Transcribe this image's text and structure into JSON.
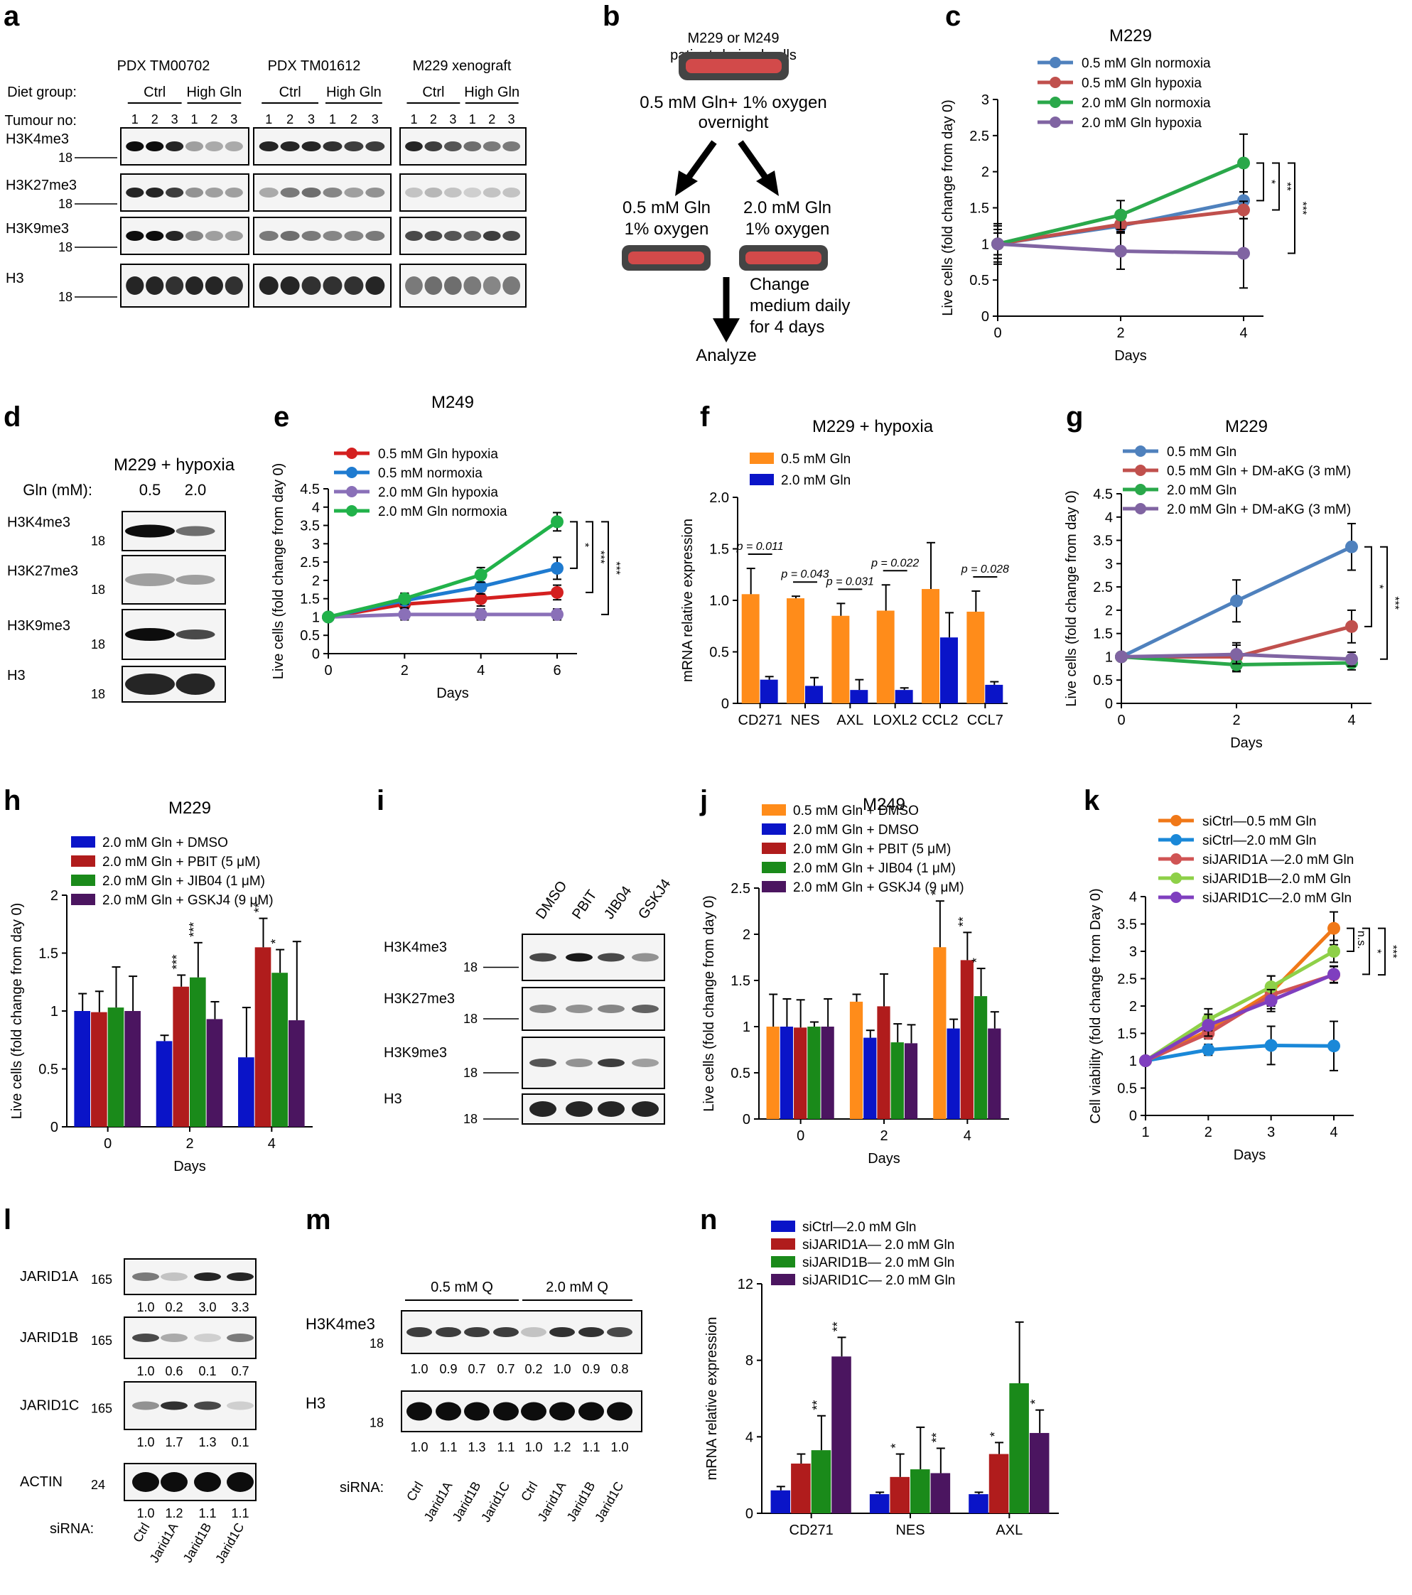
{
  "panels": {
    "a": {
      "label": "a",
      "groups": [
        "PDX TM00702",
        "PDX TM01612",
        "M229 xenograft"
      ],
      "row_diet": "Diet group:",
      "row_tumour": "Tumour no:",
      "diet": [
        "Ctrl",
        "High Gln"
      ],
      "tumour_nos": [
        "1",
        "2",
        "3"
      ],
      "blots": [
        "H3K4me3",
        "H3K27me3",
        "H3K9me3",
        "H3"
      ],
      "marker": "18"
    },
    "b": {
      "label": "b",
      "top": "M229 or M249",
      "top2": "patient-derived cells",
      "cond1": "0.5 mM Gln+ 1% oxygen",
      "cond2": "overnight",
      "left1": "0.5 mM Gln",
      "left2": "1% oxygen",
      "right1": "2.0 mM Gln",
      "right2": "1% oxygen",
      "change1": "Change",
      "change2": "medium daily",
      "change3": "for 4 days",
      "analyze": "Analyze"
    },
    "d": {
      "label": "d",
      "title": "M229 + hypoxia",
      "gln_label": "Gln (mM):",
      "gln_vals": [
        "0.5",
        "2.0"
      ],
      "blots": [
        "H3K4me3",
        "H3K27me3",
        "H3K9me3",
        "H3"
      ],
      "marker": "18"
    },
    "i": {
      "label": "i",
      "lanes": [
        "DMSO",
        "PBIT",
        "JIB04",
        "GSKJ4"
      ],
      "blots": [
        "H3K4me3",
        "H3K27me3",
        "H3K9me3",
        "H3"
      ],
      "marker": "18"
    },
    "l": {
      "label": "l",
      "blots": [
        {
          "name": "JARID1A",
          "marker": "165",
          "quant": [
            "1.0",
            "0.2",
            "3.0",
            "3.3"
          ]
        },
        {
          "name": "JARID1B",
          "marker": "165",
          "quant": [
            "1.0",
            "0.6",
            "0.1",
            "0.7"
          ]
        },
        {
          "name": "JARID1C",
          "marker": "165",
          "quant": [
            "1.0",
            "1.7",
            "1.3",
            "0.1"
          ]
        },
        {
          "name": "ACTIN",
          "marker": "24",
          "quant": [
            "1.0",
            "1.2",
            "1.1",
            "1.1"
          ]
        }
      ],
      "sirna_label": "siRNA:",
      "lanes": [
        "Ctrl",
        "Jarid1A",
        "Jarid1B",
        "Jarid1C"
      ]
    },
    "m": {
      "label": "m",
      "conds": [
        "0.5 mM Q",
        "2.0 mM Q"
      ],
      "blots": [
        {
          "name": "H3K4me3",
          "marker": "18",
          "quant": [
            "1.0",
            "0.9",
            "0.7",
            "0.7",
            "0.2",
            "1.0",
            "0.9",
            "0.8"
          ]
        },
        {
          "name": "H3",
          "marker": "18",
          "quant": [
            "1.0",
            "1.1",
            "1.3",
            "1.1",
            "1.0",
            "1.2",
            "1.1",
            "1.0"
          ]
        }
      ],
      "sirna_label": "siRNA:",
      "lanes": [
        "Ctrl",
        "Jarid1A",
        "Jarid1B",
        "Jarid1C",
        "Ctrl",
        "Jarid1A",
        "Jarid1B",
        "Jarid1C"
      ]
    }
  },
  "chart_data": [
    {
      "id": "c",
      "label": "c",
      "type": "line",
      "title": "M229",
      "xlabel": "Days",
      "ylabel": "Live cells (fold change from day 0)",
      "x": [
        0,
        2,
        4
      ],
      "ylim": [
        0,
        3
      ],
      "yticks": [
        "0",
        "0.5",
        "1",
        "1.5",
        "2",
        "2.5",
        "3"
      ],
      "series": [
        {
          "name": "0.5 mM Gln normoxia",
          "color": "#4f81bd",
          "values": [
            1.0,
            1.25,
            1.6
          ],
          "err": [
            0.28,
            0.1,
            0.12
          ]
        },
        {
          "name": "0.5 mM Gln hypoxia",
          "color": "#c0504d",
          "values": [
            1.0,
            1.27,
            1.47
          ],
          "err": [
            0.2,
            0.1,
            0.12
          ]
        },
        {
          "name": "2.0 mM Gln normoxia",
          "color": "#2aa84a",
          "values": [
            1.0,
            1.4,
            2.12
          ],
          "err": [
            0.15,
            0.2,
            0.4
          ]
        },
        {
          "name": "2.0 mM Gln hypoxia",
          "color": "#8064a2",
          "values": [
            1.0,
            0.9,
            0.87
          ],
          "err": [
            0.25,
            0.25,
            0.48
          ]
        }
      ],
      "sig": [
        "*",
        "**",
        "***"
      ]
    },
    {
      "id": "e",
      "label": "e",
      "type": "line",
      "title": "M249",
      "xlabel": "Days",
      "ylabel": "Live cells (fold change from day 0)",
      "x": [
        0,
        2,
        4,
        6
      ],
      "ylim": [
        0,
        4.5
      ],
      "yticks": [
        "0",
        "0.5",
        "1",
        "1.5",
        "2",
        "2.5",
        "3",
        "3.5",
        "4",
        "4.5"
      ],
      "series": [
        {
          "name": "0.5 mM Gln hypoxia",
          "color": "#d42020",
          "values": [
            1.0,
            1.35,
            1.5,
            1.67
          ],
          "err": [
            0.05,
            0.2,
            0.2,
            0.2
          ]
        },
        {
          "name": "0.5 mM normoxia",
          "color": "#1f7bd0",
          "values": [
            1.0,
            1.45,
            1.83,
            2.33
          ],
          "err": [
            0.05,
            0.2,
            0.2,
            0.3
          ]
        },
        {
          "name": "2.0 mM Gln hypoxia",
          "color": "#8a70b8",
          "values": [
            1.0,
            1.07,
            1.07,
            1.07
          ],
          "err": [
            0.05,
            0.15,
            0.15,
            0.15
          ]
        },
        {
          "name": "2.0 mM Gln normoxia",
          "color": "#21b24a",
          "values": [
            1.0,
            1.5,
            2.15,
            3.6
          ],
          "err": [
            0.05,
            0.15,
            0.2,
            0.25
          ]
        }
      ],
      "sig": [
        "*",
        "***",
        "***"
      ]
    },
    {
      "id": "f",
      "label": "f",
      "type": "bar",
      "title": "M229 + hypoxia",
      "xlabel": "",
      "ylabel": "mRNA relative expression",
      "categories": [
        "CD271",
        "NES",
        "AXL",
        "LOXL2",
        "CCL2",
        "CCL7"
      ],
      "ylim": [
        0,
        2
      ],
      "yticks": [
        "0",
        "0.5",
        "1.0",
        "1.5",
        "2.0"
      ],
      "series": [
        {
          "name": "0.5 mM Gln",
          "color": "#ff8c1a",
          "values": [
            1.06,
            1.02,
            0.85,
            0.9,
            1.11,
            0.89
          ],
          "err": [
            0.25,
            0.02,
            0.12,
            0.25,
            0.45,
            0.2
          ]
        },
        {
          "name": "2.0 mM Gln",
          "color": "#0a14c8",
          "values": [
            0.23,
            0.17,
            0.13,
            0.13,
            0.64,
            0.18
          ],
          "err": [
            0.03,
            0.08,
            0.1,
            0.02,
            0.24,
            0.03
          ]
        }
      ],
      "pvalues": [
        "p = 0.011",
        "p = 0.043",
        "p = 0.031",
        "p = 0.022",
        "",
        "p = 0.028"
      ]
    },
    {
      "id": "g",
      "label": "g",
      "type": "line",
      "title": "M229",
      "xlabel": "Days",
      "ylabel": "Live cells (fold change from day 0)",
      "x": [
        0,
        2,
        4
      ],
      "ylim": [
        0,
        4.5
      ],
      "yticks": [
        "0",
        "0.5",
        "1",
        "1.5",
        "2",
        "2.5",
        "3",
        "3.5",
        "4",
        "4.5"
      ],
      "series": [
        {
          "name": "0.5 mM Gln",
          "color": "#4f81bd",
          "values": [
            1.0,
            2.2,
            3.36
          ],
          "err": [
            0.05,
            0.45,
            0.5
          ]
        },
        {
          "name": "0.5 mM Gln + DM-aKG (3 mM)",
          "color": "#c0504d",
          "values": [
            1.0,
            1.0,
            1.65
          ],
          "err": [
            0.05,
            0.3,
            0.35
          ]
        },
        {
          "name": "2.0 mM Gln",
          "color": "#2aa84a",
          "values": [
            1.0,
            0.83,
            0.87
          ],
          "err": [
            0.05,
            0.15,
            0.15
          ]
        },
        {
          "name": "2.0 mM Gln + DM-aKG (3 mM)",
          "color": "#8064a2",
          "values": [
            1.0,
            1.05,
            0.95
          ],
          "err": [
            0.05,
            0.2,
            0.15
          ]
        }
      ],
      "sig": [
        "*",
        "***"
      ]
    },
    {
      "id": "h",
      "label": "h",
      "type": "bar",
      "title": "M229",
      "xlabel": "Days",
      "ylabel": "Live cells (fold change from day 0)",
      "categories": [
        "0",
        "2",
        "4"
      ],
      "ylim": [
        0,
        2
      ],
      "yticks": [
        "0",
        "0.5",
        "1",
        "1.5",
        "2"
      ],
      "series": [
        {
          "name": "2.0 mM Gln + DMSO",
          "color": "#0a14c8",
          "values": [
            1.0,
            0.74,
            0.6
          ],
          "err": [
            0.15,
            0.05,
            0.43
          ]
        },
        {
          "name": "2.0 mM Gln + PBIT (5 μM)",
          "color": "#b01c1c",
          "values": [
            0.99,
            1.21,
            1.55
          ],
          "err": [
            0.18,
            0.1,
            0.25
          ]
        },
        {
          "name": "2.0 mM Gln + JIB04 (1 μM)",
          "color": "#1a8a1a",
          "values": [
            1.03,
            1.29,
            1.33
          ],
          "err": [
            0.35,
            0.3,
            0.2
          ]
        },
        {
          "name": "2.0 mM Gln + GSKJ4 (9 μM)",
          "color": "#4b1560",
          "values": [
            1.0,
            0.93,
            0.92
          ],
          "err": [
            0.3,
            0.15,
            0.68
          ]
        }
      ],
      "sig": [
        [
          "",
          "",
          "",
          ""
        ],
        [
          "",
          "***",
          "***",
          ""
        ],
        [
          "",
          "**",
          "*",
          ""
        ]
      ]
    },
    {
      "id": "j",
      "label": "j",
      "type": "bar",
      "title": "M249",
      "xlabel": "Days",
      "ylabel": "Live cells (fold change from day 0)",
      "categories": [
        "0",
        "2",
        "4"
      ],
      "ylim": [
        0,
        2.5
      ],
      "yticks": [
        "0",
        "0.5",
        "1",
        "1.5",
        "2",
        "2.5"
      ],
      "series": [
        {
          "name": "0.5 mM Gln + DMSO",
          "color": "#ff8c1a",
          "values": [
            1.0,
            1.27,
            1.86
          ],
          "err": [
            0.35,
            0.08,
            0.5
          ]
        },
        {
          "name": "2.0 mM Gln + DMSO",
          "color": "#0a14c8",
          "values": [
            1.0,
            0.88,
            0.98
          ],
          "err": [
            0.3,
            0.08,
            0.1
          ]
        },
        {
          "name": "2.0 mM Gln + PBIT (5 μM)",
          "color": "#b01c1c",
          "values": [
            0.99,
            1.22,
            1.72
          ],
          "err": [
            0.3,
            0.35,
            0.3
          ]
        },
        {
          "name": "2.0 mM Gln + JIB04 (1 μM)",
          "color": "#1a8a1a",
          "values": [
            1.0,
            0.83,
            1.33
          ],
          "err": [
            0.05,
            0.2,
            0.3
          ]
        },
        {
          "name": "2.0 mM Gln + GSKJ4 (9 μM)",
          "color": "#4b1560",
          "values": [
            1.0,
            0.82,
            0.98
          ],
          "err": [
            0.3,
            0.2,
            0.18
          ]
        }
      ],
      "sig": [
        [
          "",
          "",
          "",
          "",
          ""
        ],
        [
          "",
          "",
          "",
          "",
          ""
        ],
        [
          "*",
          "",
          "**",
          "*",
          ""
        ]
      ]
    },
    {
      "id": "k",
      "label": "k",
      "type": "line",
      "title": "",
      "xlabel": "Days",
      "ylabel": "Cell viability (fold change from Day 0)",
      "x": [
        1,
        2,
        3,
        4
      ],
      "ylim": [
        0,
        4
      ],
      "yticks": [
        "0",
        "0.5",
        "1",
        "1.5",
        "2",
        "2.5",
        "3",
        "3.5",
        "4"
      ],
      "series": [
        {
          "name": "siCtrl—0.5 mM Gln",
          "color": "#f07818",
          "values": [
            1.0,
            1.55,
            2.25,
            3.42
          ],
          "err": [
            0.03,
            0.1,
            0.3,
            0.3
          ]
        },
        {
          "name": "siCtrl—2.0 mM Gln",
          "color": "#1a88d8",
          "values": [
            1.0,
            1.2,
            1.28,
            1.27
          ],
          "err": [
            0.03,
            0.1,
            0.35,
            0.45
          ]
        },
        {
          "name": "siJARID1A —2.0 mM Gln",
          "color": "#d05454",
          "values": [
            1.0,
            1.5,
            2.2,
            2.57
          ],
          "err": [
            0.03,
            0.1,
            0.2,
            0.15
          ]
        },
        {
          "name": "siJARID1B—2.0 mM Gln",
          "color": "#8ed048",
          "values": [
            1.0,
            1.75,
            2.35,
            3.0
          ],
          "err": [
            0.03,
            0.2,
            0.2,
            0.2
          ]
        },
        {
          "name": "siJARID1C—2.0 mM Gln",
          "color": "#7f3fbf",
          "values": [
            1.0,
            1.65,
            2.1,
            2.58
          ],
          "err": [
            0.03,
            0.2,
            0.2,
            0.15
          ]
        }
      ],
      "sig": [
        "n.s.",
        "*",
        "***"
      ]
    },
    {
      "id": "n",
      "label": "n",
      "type": "bar",
      "title": "",
      "xlabel": "",
      "ylabel": "mRNA relative expression",
      "categories": [
        "CD271",
        "NES",
        "AXL"
      ],
      "ylim": [
        0,
        12
      ],
      "yticks": [
        "0",
        "4",
        "8",
        "12"
      ],
      "series": [
        {
          "name": "siCtrl—2.0 mM Gln",
          "color": "#0a14c8",
          "values": [
            1.2,
            1.0,
            1.0
          ],
          "err": [
            0.2,
            0.1,
            0.1
          ]
        },
        {
          "name": "siJARID1A— 2.0 mM Gln",
          "color": "#b01c1c",
          "values": [
            2.6,
            1.9,
            3.1
          ],
          "err": [
            0.5,
            1.2,
            0.6
          ]
        },
        {
          "name": "siJARID1B— 2.0 mM Gln",
          "color": "#1a8a1a",
          "values": [
            3.3,
            2.3,
            6.8
          ],
          "err": [
            1.8,
            2.2,
            3.2
          ]
        },
        {
          "name": "siJARID1C— 2.0 mM Gln",
          "color": "#4b1560",
          "values": [
            8.2,
            2.1,
            4.2
          ],
          "err": [
            1.0,
            1.3,
            1.2
          ]
        }
      ],
      "sig": [
        [
          "",
          "",
          "**",
          "**"
        ],
        [
          "",
          "*",
          "",
          "**"
        ],
        [
          "",
          "*",
          "",
          "*"
        ]
      ]
    }
  ]
}
